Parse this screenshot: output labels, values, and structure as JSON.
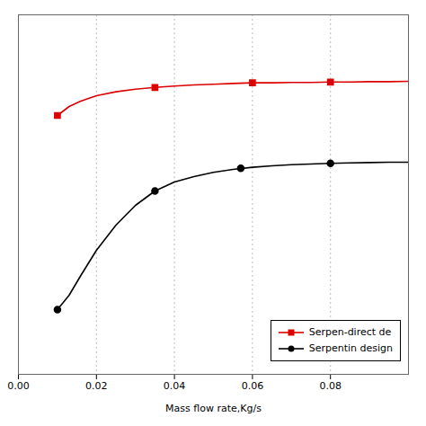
{
  "chart_data": {
    "type": "line",
    "xlabel": "Mass flow rate,Kg/s",
    "xlim": [
      0.0,
      0.1
    ],
    "xticks": [
      {
        "value": 0.0,
        "label": "0.00"
      },
      {
        "value": 0.02,
        "label": "0.02"
      },
      {
        "value": 0.04,
        "label": "0.04"
      },
      {
        "value": 0.06,
        "label": "0.06"
      },
      {
        "value": 0.08,
        "label": "0.08"
      }
    ],
    "ylim": [
      0.0,
      1.0
    ],
    "yticks": [],
    "tick_labels": "x",
    "grid": true,
    "legend": "lower right",
    "series": [
      {
        "name": "Serpen-direct de",
        "color": "#dd0000",
        "marker": "square",
        "x": [
          0.01,
          0.013,
          0.016,
          0.02,
          0.025,
          0.03,
          0.035,
          0.04,
          0.045,
          0.05,
          0.055,
          0.06,
          0.065,
          0.07,
          0.075,
          0.08,
          0.085,
          0.09,
          0.095,
          0.1
        ],
        "values": [
          0.72,
          0.745,
          0.76,
          0.775,
          0.786,
          0.793,
          0.798,
          0.802,
          0.805,
          0.807,
          0.809,
          0.811,
          0.811,
          0.812,
          0.812,
          0.813,
          0.813,
          0.814,
          0.814,
          0.815
        ],
        "marker_x": [
          0.01,
          0.035,
          0.06,
          0.08
        ],
        "marker_values": [
          0.72,
          0.798,
          0.811,
          0.813
        ]
      },
      {
        "name": "Serpentin design",
        "color": "#000000",
        "marker": "circle",
        "x": [
          0.01,
          0.013,
          0.016,
          0.02,
          0.025,
          0.03,
          0.035,
          0.04,
          0.045,
          0.05,
          0.055,
          0.06,
          0.065,
          0.07,
          0.075,
          0.08,
          0.085,
          0.09,
          0.095,
          0.1
        ],
        "values": [
          0.18,
          0.22,
          0.275,
          0.345,
          0.415,
          0.47,
          0.51,
          0.535,
          0.55,
          0.562,
          0.57,
          0.576,
          0.58,
          0.583,
          0.585,
          0.587,
          0.588,
          0.589,
          0.59,
          0.59
        ],
        "marker_x": [
          0.01,
          0.035,
          0.057,
          0.08
        ],
        "marker_values": [
          0.18,
          0.51,
          0.573,
          0.587
        ]
      }
    ]
  }
}
